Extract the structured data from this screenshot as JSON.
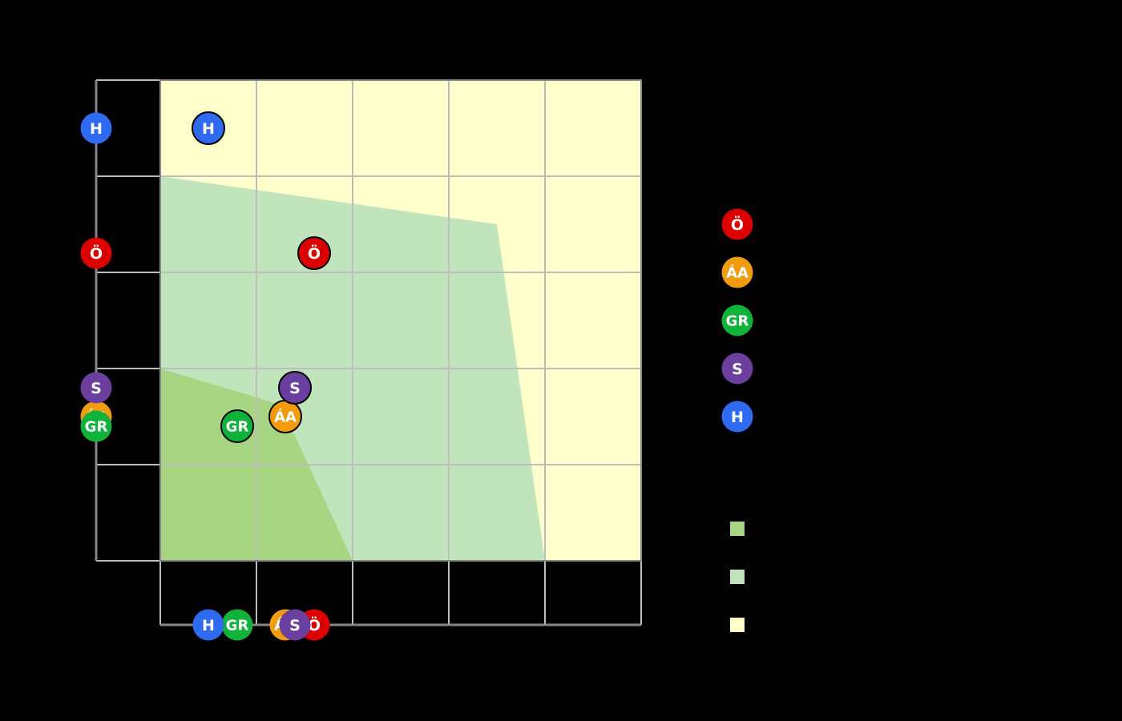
{
  "chart_data": {
    "type": "scatter",
    "title": "",
    "xlabel": "",
    "ylabel": "",
    "xlim": [
      0,
      5
    ],
    "ylim": [
      0,
      5
    ],
    "grid": true,
    "legend_position": "right",
    "series": [
      {
        "name": "Ö",
        "label": "Ö",
        "color": "#dd0000",
        "x": 1.6,
        "y": 3.2
      },
      {
        "name": "ÁA",
        "label": "ÁA",
        "color": "#f39c0b",
        "x": 1.3,
        "y": 1.5
      },
      {
        "name": "GR",
        "label": "GR",
        "color": "#0fb33a",
        "x": 0.8,
        "y": 1.4
      },
      {
        "name": "S",
        "label": "S",
        "color": "#6b3fa0",
        "x": 1.4,
        "y": 1.8
      },
      {
        "name": "H",
        "label": "H",
        "color": "#2f6bf1",
        "x": 0.5,
        "y": 4.5
      }
    ],
    "regions": [
      {
        "name": "region-inner",
        "color": "#a8d582",
        "polygon": [
          [
            0,
            2
          ],
          [
            1.25,
            1.625
          ],
          [
            2,
            0
          ],
          [
            0,
            0
          ]
        ]
      },
      {
        "name": "region-middle",
        "color": "#c0e4bb",
        "polygon": [
          [
            0,
            4
          ],
          [
            3.5,
            3.5
          ],
          [
            4,
            0
          ],
          [
            0,
            0
          ]
        ]
      },
      {
        "name": "region-outer",
        "color": "#ffffcc",
        "polygon": [
          [
            0,
            5
          ],
          [
            5,
            5
          ],
          [
            5,
            0
          ],
          [
            0,
            0
          ]
        ]
      }
    ]
  },
  "legend": {
    "markers": [
      {
        "label": "Ö",
        "color": "#dd0000"
      },
      {
        "label": "ÁA",
        "color": "#f39c0b"
      },
      {
        "label": "GR",
        "color": "#0fb33a"
      },
      {
        "label": "S",
        "color": "#6b3fa0"
      },
      {
        "label": "H",
        "color": "#2f6bf1"
      }
    ],
    "swatches": [
      {
        "color": "#a8d582"
      },
      {
        "color": "#c0e4bb"
      },
      {
        "color": "#ffffcc"
      }
    ]
  },
  "colors": {
    "background": "#000000",
    "grid": "#bdbdbd",
    "axis": "#888888"
  }
}
